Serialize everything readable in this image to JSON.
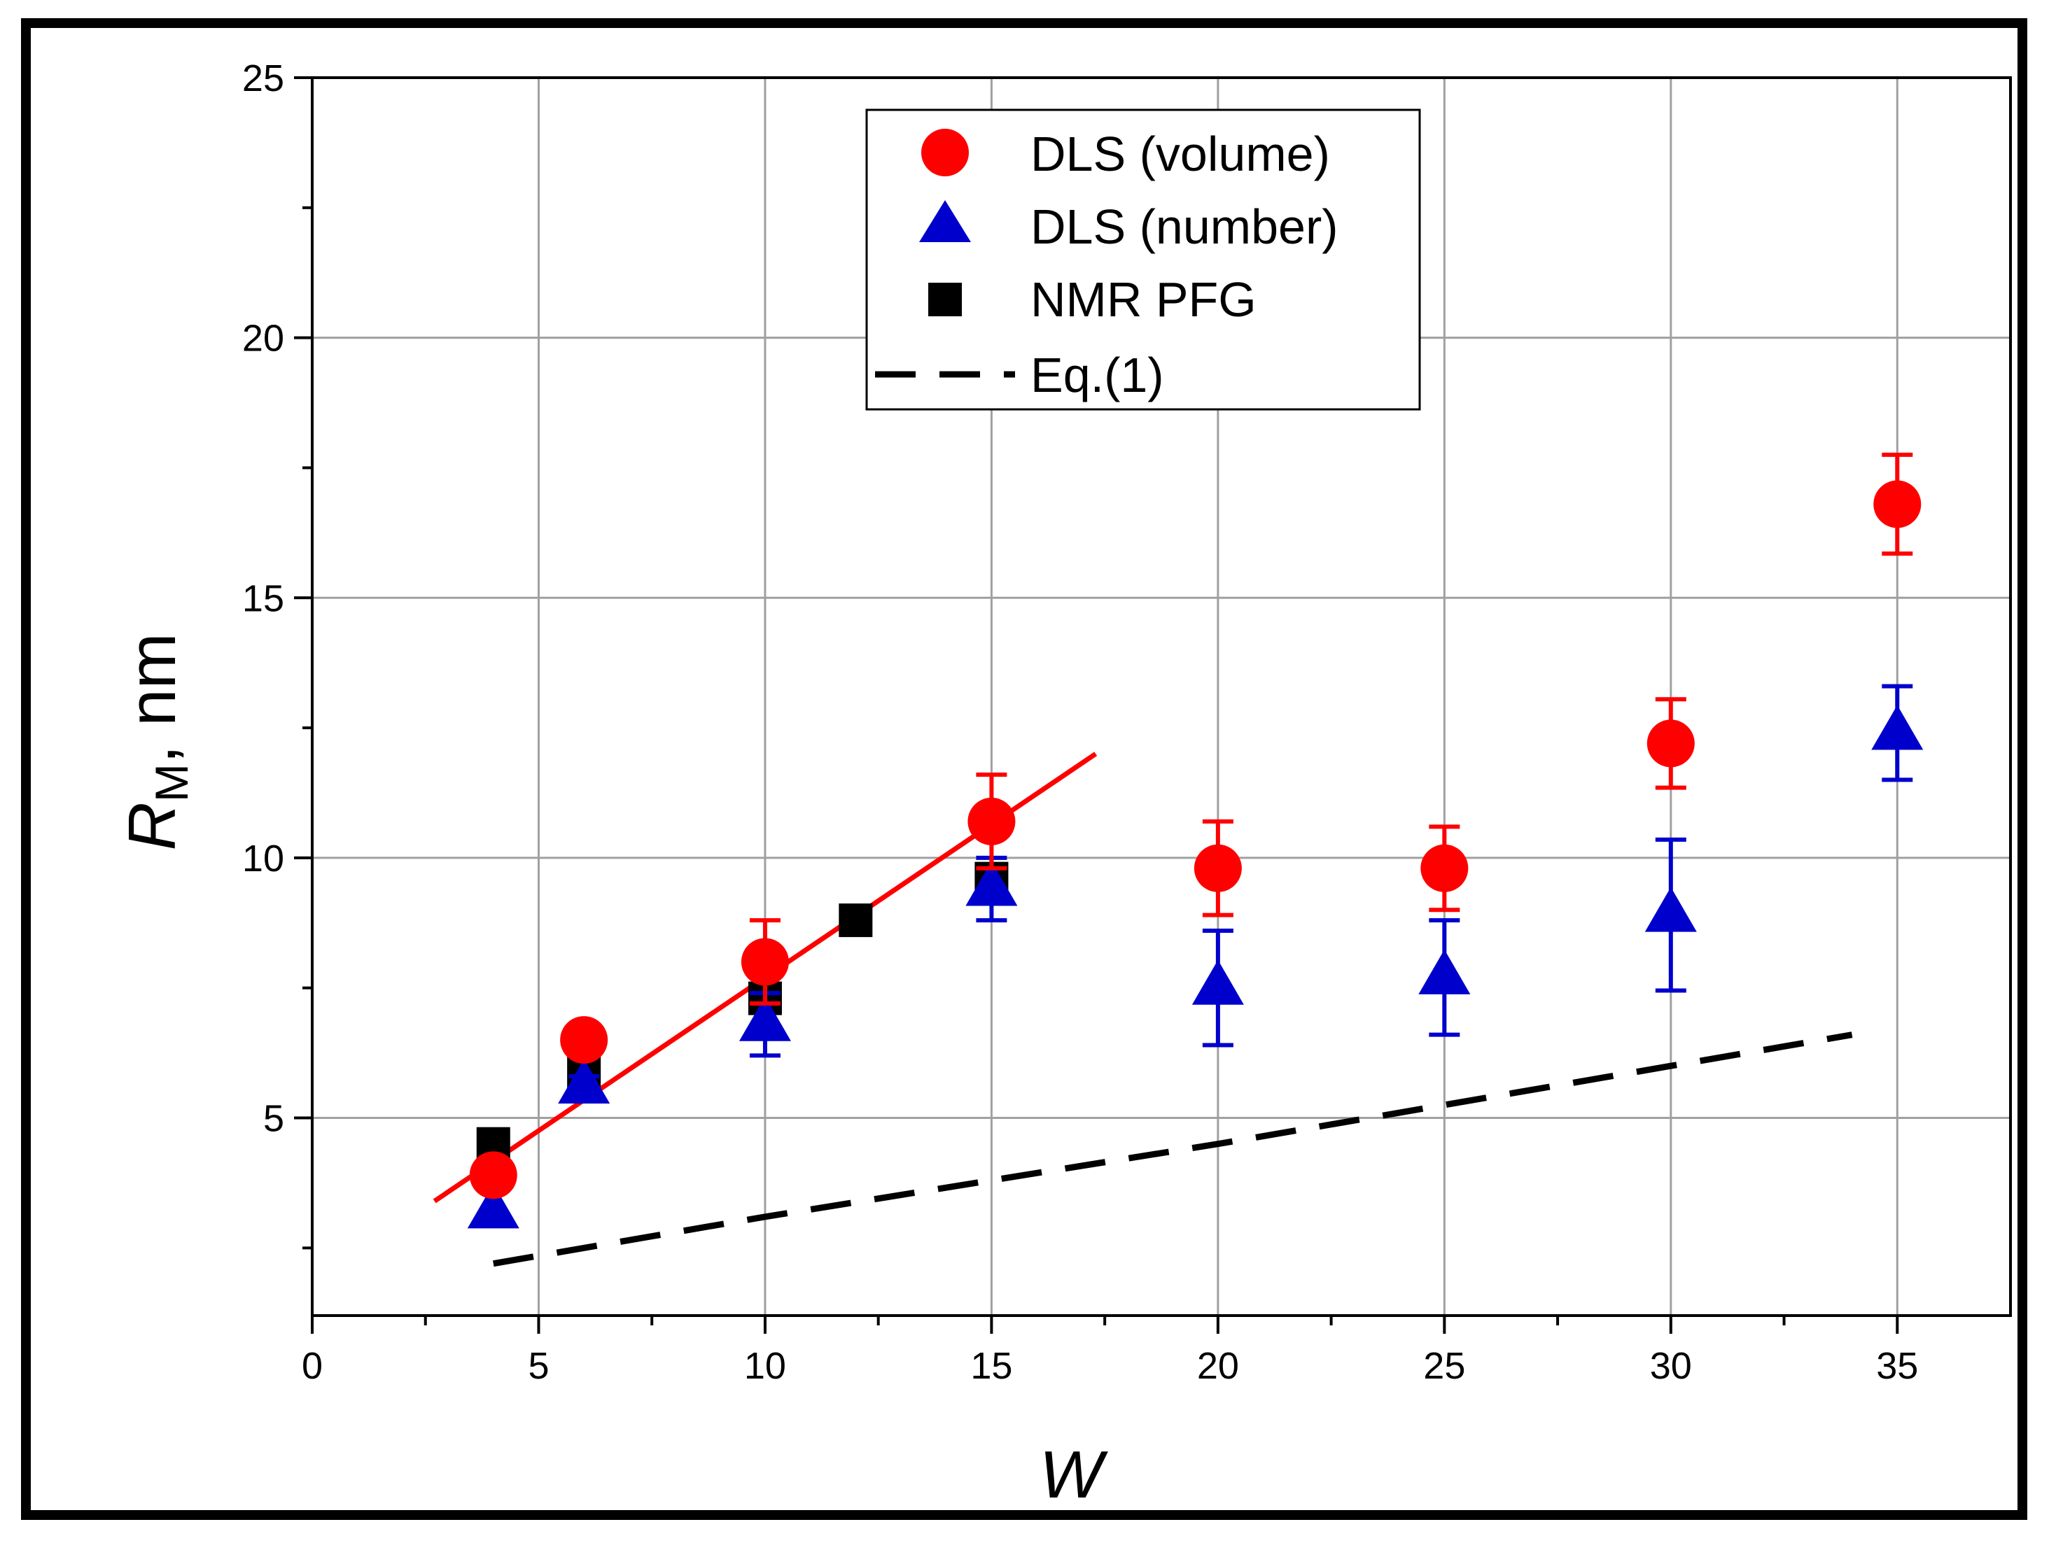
{
  "chart_data": {
    "type": "scatter",
    "title": "",
    "xlabel": "W",
    "ylabel_main": "R",
    "ylabel_sub": "M",
    "ylabel_unit": ", nm",
    "xlim": [
      0,
      37.5
    ],
    "ylim": [
      1.2,
      25
    ],
    "xticks": [
      0,
      5,
      10,
      15,
      20,
      25,
      30,
      35
    ],
    "yticks": [
      5,
      10,
      15,
      20,
      25
    ],
    "grid": true,
    "legend_position": "top-center",
    "series": [
      {
        "name": "DLS (volume)",
        "marker": "circle",
        "color": "#ff0000",
        "x": [
          4,
          6,
          10,
          15,
          20,
          25,
          30,
          35
        ],
        "y": [
          3.9,
          6.5,
          8.0,
          10.7,
          9.8,
          9.8,
          12.2,
          16.8
        ],
        "err": [
          0,
          0.3,
          0.8,
          0.9,
          0.9,
          0.8,
          0.85,
          0.95
        ]
      },
      {
        "name": "DLS (number)",
        "marker": "triangle",
        "color": "#0000cc",
        "x": [
          4,
          6,
          10,
          15,
          20,
          25,
          30,
          35
        ],
        "y": [
          3.2,
          5.6,
          6.8,
          9.4,
          7.5,
          7.7,
          8.9,
          12.4
        ],
        "err": [
          0,
          0.2,
          0.6,
          0.6,
          1.1,
          1.1,
          1.45,
          0.9
        ]
      },
      {
        "name": "NMR PFG",
        "marker": "square",
        "color": "#000000",
        "x": [
          4,
          6,
          10,
          12,
          15
        ],
        "y": [
          4.5,
          5.9,
          7.3,
          8.8,
          9.6
        ]
      },
      {
        "name": "Eq.(1)",
        "marker": "dashed-line",
        "color": "#000000",
        "x": [
          4,
          10,
          20,
          30,
          34
        ],
        "y": [
          2.2,
          3.1,
          4.5,
          6.0,
          6.6
        ]
      }
    ],
    "fit_line": {
      "color": "#ff0000",
      "x": [
        2.7,
        17.3
      ],
      "y": [
        3.4,
        12.0
      ]
    }
  }
}
